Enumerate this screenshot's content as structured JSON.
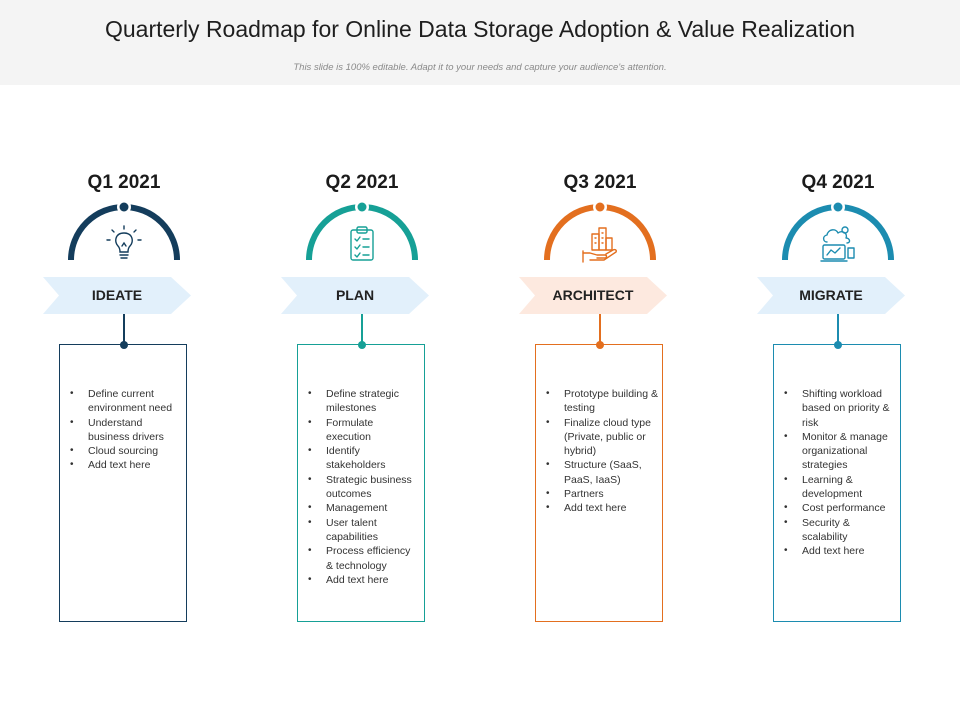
{
  "header": {
    "title": "Quarterly Roadmap for Online Data Storage Adoption & Value Realization",
    "subtitle": "This slide is 100% editable. Adapt it to your needs and capture your audience's attention."
  },
  "columns": [
    {
      "quarter": "Q1 2021",
      "stage": "IDEATE",
      "icon": "lightbulb-icon",
      "color": "#143d5c",
      "chevron_fill": "#e2f0fb",
      "items": [
        "Define current environment need",
        "Understand business drivers",
        "Cloud sourcing",
        "Add text here"
      ]
    },
    {
      "quarter": "Q2 2021",
      "stage": "PLAN",
      "icon": "clipboard-checklist-icon",
      "color": "#16a096",
      "chevron_fill": "#e2f0fb",
      "items": [
        "Define strategic milestones",
        "Formulate execution",
        "Identify stakeholders",
        "Strategic business outcomes",
        "Management",
        "User talent capabilities",
        "Process efficiency & technology",
        "Add text here"
      ]
    },
    {
      "quarter": "Q3 2021",
      "stage": "ARCHITECT",
      "icon": "hand-buildings-icon",
      "color": "#e36f1f",
      "chevron_fill": "#fde9df",
      "items": [
        "Prototype building & testing",
        "Finalize cloud type (Private, public or hybrid)",
        "Structure (SaaS, PaaS, IaaS)",
        "Partners",
        "Add text here"
      ]
    },
    {
      "quarter": "Q4 2021",
      "stage": "MIGRATE",
      "icon": "cloud-migration-icon",
      "color": "#1c8cb0",
      "chevron_fill": "#e2f0fb",
      "items": [
        "Shifting workload based on priority & risk",
        "Monitor & manage organizational strategies",
        "Learning & development",
        "Cost performance",
        "Security & scalability",
        "Add text here"
      ]
    }
  ]
}
